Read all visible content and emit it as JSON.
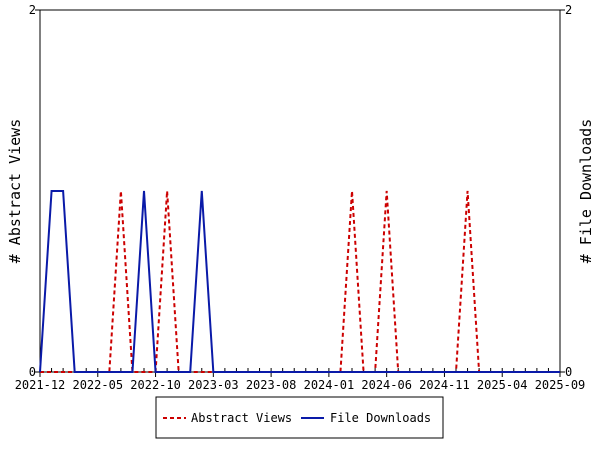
{
  "chart_data": {
    "type": "line",
    "title": "",
    "ylabel_left": "# Abstract Views",
    "ylabel_right": "# File Downloads",
    "ylim_left": [
      0,
      2
    ],
    "ylim_right": [
      0,
      2
    ],
    "y_ticks_left": [
      "0",
      "2"
    ],
    "y_ticks_right": [
      "0",
      "2"
    ],
    "x_start": "2021-12",
    "x_end": "2025-09",
    "x_tick_labels": [
      "2021-12",
      "2022-05",
      "2022-10",
      "2023-03",
      "2023-08",
      "2024-01",
      "2024-06",
      "2024-11",
      "2025-04",
      "2025-09"
    ],
    "grid": false,
    "legend_position": "bottom",
    "series": [
      {
        "name": "Abstract Views",
        "color": "#cc0000",
        "dash": "dashed",
        "axis": "left",
        "points": [
          [
            "2021-12",
            0
          ],
          [
            "2022-01",
            0
          ],
          [
            "2022-02",
            0
          ],
          [
            "2022-03",
            0
          ],
          [
            "2022-04",
            0
          ],
          [
            "2022-05",
            0
          ],
          [
            "2022-06",
            0
          ],
          [
            "2022-07",
            1
          ],
          [
            "2022-08",
            0
          ],
          [
            "2022-09",
            0
          ],
          [
            "2022-10",
            0
          ],
          [
            "2022-11",
            1
          ],
          [
            "2022-12",
            0
          ],
          [
            "2023-01",
            0
          ],
          [
            "2023-02",
            0
          ],
          [
            "2023-03",
            0
          ],
          [
            "2023-04",
            0
          ],
          [
            "2023-05",
            0
          ],
          [
            "2023-06",
            0
          ],
          [
            "2023-07",
            0
          ],
          [
            "2023-08",
            0
          ],
          [
            "2023-09",
            0
          ],
          [
            "2023-10",
            0
          ],
          [
            "2023-11",
            0
          ],
          [
            "2023-12",
            0
          ],
          [
            "2024-01",
            0
          ],
          [
            "2024-02",
            0
          ],
          [
            "2024-03",
            1
          ],
          [
            "2024-04",
            0
          ],
          [
            "2024-05",
            0
          ],
          [
            "2024-06",
            1
          ],
          [
            "2024-07",
            0
          ],
          [
            "2024-08",
            0
          ],
          [
            "2024-09",
            0
          ],
          [
            "2024-10",
            0
          ],
          [
            "2024-11",
            0
          ],
          [
            "2024-12",
            0
          ],
          [
            "2025-01",
            1
          ],
          [
            "2025-02",
            0
          ],
          [
            "2025-03",
            0
          ],
          [
            "2025-04",
            0
          ],
          [
            "2025-05",
            0
          ],
          [
            "2025-06",
            0
          ],
          [
            "2025-07",
            0
          ],
          [
            "2025-08",
            0
          ],
          [
            "2025-09",
            0
          ]
        ]
      },
      {
        "name": "File Downloads",
        "color": "#0a1aa8",
        "dash": "solid",
        "axis": "right",
        "points": [
          [
            "2021-12",
            0
          ],
          [
            "2022-01",
            1
          ],
          [
            "2022-02",
            1
          ],
          [
            "2022-03",
            0
          ],
          [
            "2022-04",
            0
          ],
          [
            "2022-05",
            0
          ],
          [
            "2022-06",
            0
          ],
          [
            "2022-07",
            0
          ],
          [
            "2022-08",
            0
          ],
          [
            "2022-09",
            1
          ],
          [
            "2022-10",
            0
          ],
          [
            "2022-11",
            0
          ],
          [
            "2022-12",
            0
          ],
          [
            "2023-01",
            0
          ],
          [
            "2023-02",
            1
          ],
          [
            "2023-03",
            0
          ],
          [
            "2023-04",
            0
          ],
          [
            "2023-05",
            0
          ],
          [
            "2023-06",
            0
          ],
          [
            "2023-07",
            0
          ],
          [
            "2023-08",
            0
          ],
          [
            "2023-09",
            0
          ],
          [
            "2023-10",
            0
          ],
          [
            "2023-11",
            0
          ],
          [
            "2023-12",
            0
          ],
          [
            "2024-01",
            0
          ],
          [
            "2024-02",
            0
          ],
          [
            "2024-03",
            0
          ],
          [
            "2024-04",
            0
          ],
          [
            "2024-05",
            0
          ],
          [
            "2024-06",
            0
          ],
          [
            "2024-07",
            0
          ],
          [
            "2024-08",
            0
          ],
          [
            "2024-09",
            0
          ],
          [
            "2024-10",
            0
          ],
          [
            "2024-11",
            0
          ],
          [
            "2024-12",
            0
          ],
          [
            "2025-01",
            0
          ],
          [
            "2025-02",
            0
          ],
          [
            "2025-03",
            0
          ],
          [
            "2025-04",
            0
          ],
          [
            "2025-05",
            0
          ],
          [
            "2025-06",
            0
          ],
          [
            "2025-07",
            0
          ],
          [
            "2025-08",
            0
          ],
          [
            "2025-09",
            0
          ]
        ]
      }
    ]
  }
}
